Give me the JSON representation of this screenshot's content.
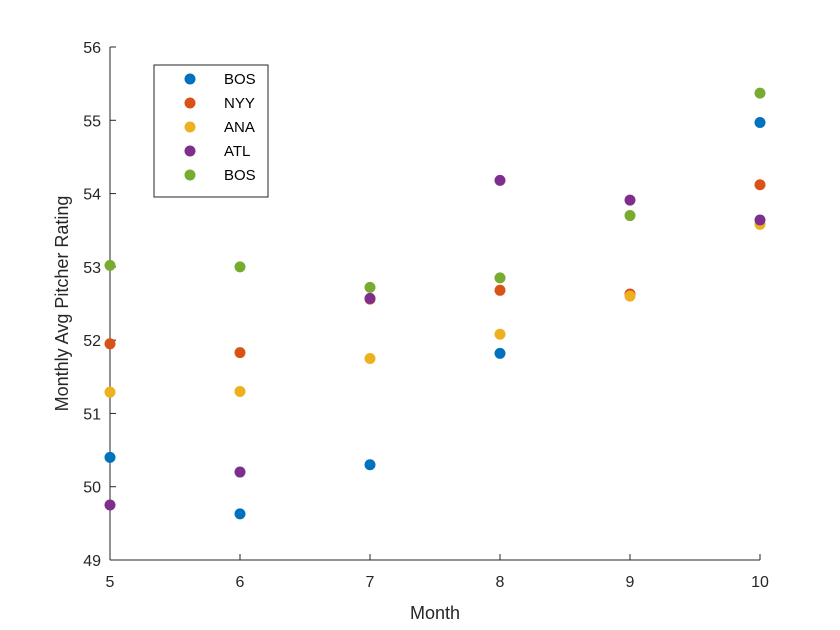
{
  "chart_data": {
    "type": "scatter",
    "title": "",
    "xlabel": "Month",
    "ylabel": "Monthly Avg Pitcher Rating",
    "xlim": [
      5,
      10
    ],
    "ylim": [
      49,
      56
    ],
    "xticks": [
      "5",
      "6",
      "7",
      "8",
      "9",
      "10"
    ],
    "yticks": [
      "49",
      "50",
      "51",
      "52",
      "53",
      "54",
      "55",
      "56"
    ],
    "grid": false,
    "legend_position": "top-left",
    "x": [
      5,
      6,
      7,
      8,
      9,
      10
    ],
    "series": [
      {
        "name": "BOS",
        "color": "#0072BD",
        "values": [
          50.4,
          49.63,
          50.3,
          51.82,
          null,
          54.97
        ]
      },
      {
        "name": "NYY",
        "color": "#D95319",
        "values": [
          51.95,
          51.83,
          52.56,
          52.68,
          52.63,
          54.12
        ]
      },
      {
        "name": "ANA",
        "color": "#EDB120",
        "values": [
          51.29,
          51.3,
          51.75,
          52.08,
          52.6,
          53.58
        ]
      },
      {
        "name": "ATL",
        "color": "#7E2F8E",
        "values": [
          49.75,
          50.2,
          52.57,
          54.18,
          53.91,
          53.64
        ]
      },
      {
        "name": "BOS",
        "color": "#77AC30",
        "values": [
          53.02,
          53.0,
          52.72,
          52.85,
          53.7,
          55.37
        ]
      }
    ]
  }
}
